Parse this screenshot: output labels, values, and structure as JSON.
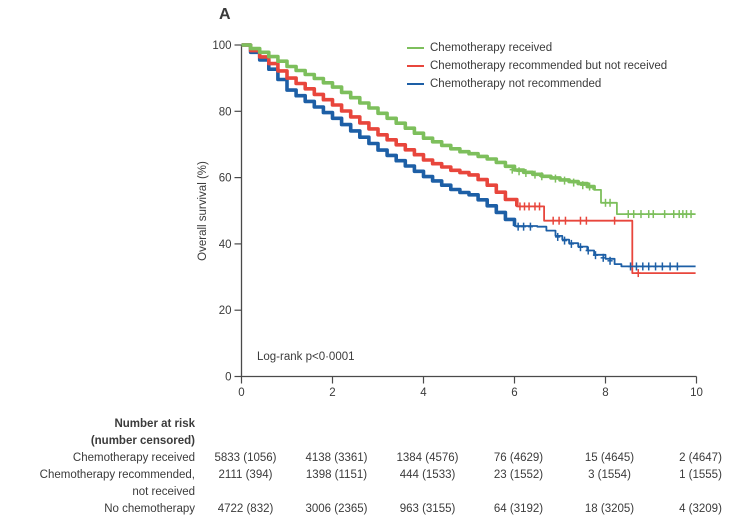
{
  "panel_label": "A",
  "chart_data": {
    "type": "line",
    "subtype": "kaplan-meier-survival",
    "title": "",
    "xlabel": "",
    "ylabel": "Overall survival (%)",
    "xlim": [
      0,
      10
    ],
    "ylim": [
      0,
      100
    ],
    "x_ticks": [
      0,
      2,
      4,
      6,
      8,
      10
    ],
    "y_ticks": [
      0,
      20,
      40,
      60,
      80,
      100
    ],
    "grid": false,
    "legend_position": "top-right-inside",
    "annotation": "Log-rank p<0·0001",
    "axis_color": "#4a4a4a",
    "text_color": "#3b3b3b",
    "series": [
      {
        "name": "Chemotherapy not recommended",
        "color": "#1d5fa6",
        "thick_until": 6.0,
        "points": [
          [
            0,
            100
          ],
          [
            0.2,
            97.8
          ],
          [
            0.4,
            95.5
          ],
          [
            0.6,
            92.7
          ],
          [
            0.8,
            89.6
          ],
          [
            1,
            86.4
          ],
          [
            1.2,
            84.7
          ],
          [
            1.4,
            83
          ],
          [
            1.6,
            81.3
          ],
          [
            1.8,
            79.6
          ],
          [
            2,
            77.9
          ],
          [
            2.2,
            76
          ],
          [
            2.4,
            74.1
          ],
          [
            2.6,
            72.2
          ],
          [
            2.8,
            70.3
          ],
          [
            3,
            68.3
          ],
          [
            3.2,
            66.7
          ],
          [
            3.4,
            65.1
          ],
          [
            3.6,
            63.5
          ],
          [
            3.8,
            61.9
          ],
          [
            4,
            60.3
          ],
          [
            4.2,
            59
          ],
          [
            4.4,
            57.7
          ],
          [
            4.6,
            56.4
          ],
          [
            4.8,
            55.5
          ],
          [
            5,
            54.8
          ],
          [
            5.2,
            53.3
          ],
          [
            5.4,
            51.5
          ],
          [
            5.6,
            49.5
          ],
          [
            5.8,
            47.4
          ],
          [
            6,
            45.4
          ],
          [
            6.5,
            45.2
          ],
          [
            6.7,
            44
          ],
          [
            6.9,
            42.4
          ],
          [
            7.05,
            41.3
          ],
          [
            7.2,
            40.2
          ],
          [
            7.4,
            39.2
          ],
          [
            7.6,
            38
          ],
          [
            7.75,
            36.7
          ],
          [
            8,
            35.5
          ],
          [
            8.2,
            33.9
          ],
          [
            8.35,
            33.2
          ],
          [
            9.98,
            33.2
          ]
        ],
        "censors": [
          [
            6.08,
            45.2
          ],
          [
            6.2,
            45.2
          ],
          [
            6.35,
            45.2
          ],
          [
            6.95,
            42.1
          ],
          [
            7.1,
            41
          ],
          [
            7.25,
            40
          ],
          [
            7.45,
            39
          ],
          [
            7.62,
            38
          ],
          [
            7.78,
            36.6
          ],
          [
            7.95,
            35.8
          ],
          [
            8.1,
            34.9
          ],
          [
            8.55,
            33.2
          ],
          [
            8.68,
            33.2
          ],
          [
            8.82,
            33.2
          ],
          [
            8.95,
            33.2
          ],
          [
            9.1,
            33.2
          ],
          [
            9.25,
            33.2
          ],
          [
            9.42,
            33.2
          ],
          [
            9.58,
            33.2
          ]
        ]
      },
      {
        "name": "Chemotherapy recommended but not received",
        "color": "#e8463c",
        "thick_until": 6.05,
        "points": [
          [
            0,
            100
          ],
          [
            0.2,
            98.3
          ],
          [
            0.4,
            96.4
          ],
          [
            0.6,
            94.4
          ],
          [
            0.8,
            92.2
          ],
          [
            1,
            90
          ],
          [
            1.2,
            88.4
          ],
          [
            1.4,
            86.8
          ],
          [
            1.6,
            85.1
          ],
          [
            1.8,
            83.5
          ],
          [
            2,
            81.9
          ],
          [
            2.2,
            80.1
          ],
          [
            2.4,
            78.3
          ],
          [
            2.6,
            76.5
          ],
          [
            2.8,
            74.7
          ],
          [
            3,
            72.9
          ],
          [
            3.2,
            71.4
          ],
          [
            3.4,
            69.9
          ],
          [
            3.6,
            68.4
          ],
          [
            3.8,
            66.9
          ],
          [
            4,
            65.3
          ],
          [
            4.2,
            64.2
          ],
          [
            4.4,
            63.2
          ],
          [
            4.6,
            62.2
          ],
          [
            4.8,
            61.5
          ],
          [
            5,
            60.8
          ],
          [
            5.2,
            59.4
          ],
          [
            5.4,
            57.7
          ],
          [
            5.6,
            55.6
          ],
          [
            5.8,
            53.4
          ],
          [
            6.05,
            51.3
          ],
          [
            6.65,
            47
          ],
          [
            8.59,
            31.2
          ],
          [
            9.98,
            31.2
          ]
        ],
        "censors": [
          [
            6.12,
            51.3
          ],
          [
            6.22,
            51.3
          ],
          [
            6.32,
            51.3
          ],
          [
            6.45,
            51.3
          ],
          [
            6.55,
            51.3
          ],
          [
            6.85,
            47
          ],
          [
            6.98,
            47
          ],
          [
            7.12,
            47
          ],
          [
            7.45,
            47
          ],
          [
            7.58,
            47
          ],
          [
            8.2,
            47
          ],
          [
            8.72,
            31.2
          ]
        ]
      },
      {
        "name": "Chemotherapy received",
        "color": "#7dbf5c",
        "thick_until": 7.75,
        "points": [
          [
            0,
            100
          ],
          [
            0.2,
            98.9
          ],
          [
            0.4,
            97.8
          ],
          [
            0.6,
            96.5
          ],
          [
            0.8,
            95.1
          ],
          [
            1,
            93.5
          ],
          [
            1.2,
            92.3
          ],
          [
            1.4,
            91.1
          ],
          [
            1.6,
            89.9
          ],
          [
            1.8,
            88.6
          ],
          [
            2,
            87.3
          ],
          [
            2.2,
            85.7
          ],
          [
            2.4,
            84.1
          ],
          [
            2.6,
            82.5
          ],
          [
            2.8,
            81
          ],
          [
            3,
            79.4
          ],
          [
            3.2,
            77.9
          ],
          [
            3.4,
            76.4
          ],
          [
            3.6,
            74.9
          ],
          [
            3.8,
            73.4
          ],
          [
            4,
            71.9
          ],
          [
            4.2,
            70.8
          ],
          [
            4.4,
            69.7
          ],
          [
            4.6,
            68.7
          ],
          [
            4.8,
            67.8
          ],
          [
            5,
            67.2
          ],
          [
            5.2,
            66.4
          ],
          [
            5.4,
            65.6
          ],
          [
            5.6,
            64.6
          ],
          [
            5.8,
            63.4
          ],
          [
            6,
            62.3
          ],
          [
            6.2,
            61.6
          ],
          [
            6.4,
            61
          ],
          [
            6.6,
            60.4
          ],
          [
            6.8,
            59.9
          ],
          [
            7,
            59.3
          ],
          [
            7.2,
            58.8
          ],
          [
            7.4,
            58.2
          ],
          [
            7.6,
            57.3
          ],
          [
            7.75,
            56.3
          ],
          [
            7.9,
            52.4
          ],
          [
            8.25,
            49
          ],
          [
            9.98,
            49
          ]
        ],
        "censors": [
          [
            5.95,
            62.4
          ],
          [
            6.1,
            61.9
          ],
          [
            6.25,
            61.4
          ],
          [
            6.45,
            60.9
          ],
          [
            6.6,
            60.4
          ],
          [
            6.9,
            59.7
          ],
          [
            7.1,
            59.1
          ],
          [
            7.3,
            58.5
          ],
          [
            7.5,
            57.7
          ],
          [
            7.65,
            57.3
          ],
          [
            8.0,
            52.4
          ],
          [
            8.1,
            52.4
          ],
          [
            8.5,
            49
          ],
          [
            8.62,
            49
          ],
          [
            8.78,
            49
          ],
          [
            8.95,
            49
          ],
          [
            9.05,
            49
          ],
          [
            9.3,
            49
          ],
          [
            9.5,
            49
          ],
          [
            9.62,
            49
          ],
          [
            9.7,
            49
          ],
          [
            9.78,
            49
          ],
          [
            9.88,
            49
          ]
        ]
      }
    ],
    "legend_order": [
      "Chemotherapy received",
      "Chemotherapy recommended but not received",
      "Chemotherapy not recommended"
    ],
    "risk_table": {
      "header_lines": [
        "Number at risk",
        "(number censored)"
      ],
      "rows": [
        {
          "label_lines": [
            "Chemotherapy received"
          ],
          "values": [
            "5833 (1056)",
            "4138 (3361)",
            "1384 (4576)",
            "76 (4629)",
            "15 (4645)",
            "2 (4647)"
          ]
        },
        {
          "label_lines": [
            "Chemotherapy recommended,",
            "not received"
          ],
          "values": [
            "2111 (394)",
            "1398 (1151)",
            "444 (1533)",
            "23 (1552)",
            "3 (1554)",
            "1 (1555)"
          ]
        },
        {
          "label_lines": [
            "No chemotherapy"
          ],
          "values": [
            "4722 (832)",
            "3006 (2365)",
            "963 (3155)",
            "64 (3192)",
            "18 (3205)",
            "4 (3209)"
          ]
        }
      ]
    }
  },
  "legend": {
    "items": [
      {
        "label": "Chemotherapy received",
        "color": "#7dbf5c"
      },
      {
        "label": "Chemotherapy recommended but not received",
        "color": "#e8463c"
      },
      {
        "label": "Chemotherapy not recommended",
        "color": "#1d5fa6"
      }
    ]
  }
}
